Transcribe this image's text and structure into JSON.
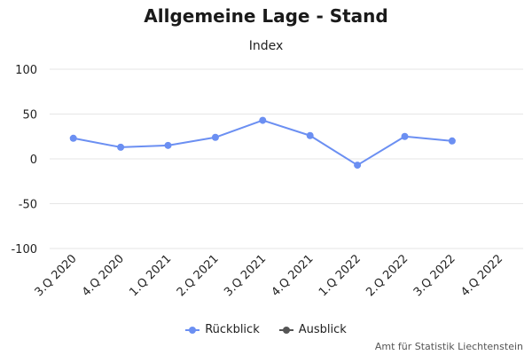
{
  "chart_data": {
    "type": "line",
    "title": "Allgemeine Lage - Stand",
    "subtitle": "Index",
    "categories": [
      "3.Q 2020",
      "4.Q 2020",
      "1.Q 2021",
      "2.Q 2021",
      "3.Q 2021",
      "4.Q 2021",
      "1.Q 2022",
      "2.Q 2022",
      "3.Q 2022",
      "4.Q 2022"
    ],
    "ylim": [
      -100,
      100
    ],
    "yticks": [
      100,
      50,
      0,
      -50,
      -100
    ],
    "grid": true,
    "legend_position": "bottom-center",
    "series": [
      {
        "name": "Rückblick",
        "color": "#6b8ff2",
        "values": [
          23,
          13,
          15,
          24,
          43,
          26,
          -7,
          25,
          20,
          null
        ]
      },
      {
        "name": "Ausblick",
        "color": "#555555",
        "values": [
          null,
          null,
          null,
          null,
          null,
          null,
          null,
          null,
          null,
          null
        ]
      }
    ]
  },
  "credits": "Amt für Statistik Liechtenstein"
}
